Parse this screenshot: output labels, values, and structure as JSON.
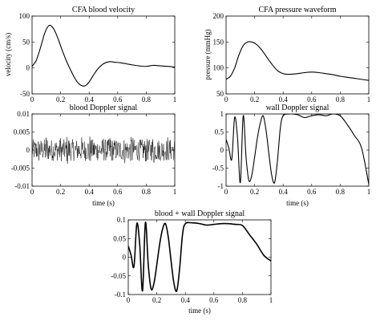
{
  "chart_data": [
    {
      "type": "line",
      "title": "CFA blood velocity",
      "xlabel": "",
      "ylabel": "velocity (cm/s)",
      "xlim": [
        0,
        1
      ],
      "ylim": [
        -50,
        100
      ],
      "xticks": [
        "0",
        "0.2",
        "0.4",
        "0.6",
        "0.8",
        "1"
      ],
      "yticks": [
        "-50",
        "0",
        "50",
        "100"
      ],
      "grid": false,
      "series": [
        {
          "x": [
            0,
            0.03,
            0.06,
            0.09,
            0.12,
            0.15,
            0.18,
            0.21,
            0.24,
            0.27,
            0.3,
            0.33,
            0.36,
            0.38,
            0.4,
            0.43,
            0.46,
            0.5,
            0.54,
            0.58,
            0.62,
            0.66,
            0.7,
            0.75,
            0.8,
            0.85,
            0.9,
            0.95,
            1.0
          ],
          "values": [
            3,
            15,
            40,
            68,
            82,
            76,
            58,
            35,
            14,
            -4,
            -20,
            -31,
            -35,
            -33,
            -27,
            -14,
            -2,
            8,
            12,
            11,
            10,
            8,
            6,
            4,
            3,
            5,
            4,
            3,
            2
          ]
        }
      ]
    },
    {
      "type": "line",
      "title": "CFA pressure waveform",
      "xlabel": "",
      "ylabel": "pressure (mmHg)",
      "xlim": [
        0,
        1
      ],
      "ylim": [
        50,
        200
      ],
      "xticks": [
        "0",
        "0.2",
        "0.4",
        "0.6",
        "0.8",
        "1"
      ],
      "yticks": [
        "50",
        "100",
        "150",
        "200"
      ],
      "grid": false,
      "series": [
        {
          "x": [
            0,
            0.03,
            0.06,
            0.09,
            0.12,
            0.15,
            0.18,
            0.21,
            0.24,
            0.27,
            0.3,
            0.33,
            0.36,
            0.39,
            0.42,
            0.46,
            0.5,
            0.55,
            0.6,
            0.65,
            0.7,
            0.75,
            0.8,
            0.85,
            0.9,
            0.95,
            1.0
          ],
          "values": [
            78,
            84,
            100,
            125,
            143,
            150,
            150,
            146,
            138,
            127,
            115,
            104,
            95,
            90,
            88,
            88,
            89,
            91,
            92,
            91,
            89,
            87,
            84,
            82,
            80,
            78,
            76
          ]
        }
      ]
    },
    {
      "type": "line",
      "title": "blood Doppler signal",
      "xlabel": "time (s)",
      "ylabel": "",
      "xlim": [
        0,
        1
      ],
      "ylim": [
        -0.01,
        0.01
      ],
      "xticks": [
        "0",
        "0.2",
        "0.4",
        "0.6",
        "0.8",
        "1"
      ],
      "yticks": [
        "-0.01",
        "-0.005",
        "0",
        "0.005",
        "0.01"
      ],
      "grid": false,
      "series": [
        {
          "x": [
            0,
            0.05,
            0.1,
            0.15,
            0.2,
            0.25,
            0.3,
            0.35,
            0.4,
            0.45,
            0.5,
            0.55,
            0.6,
            0.65,
            0.7,
            0.75,
            0.8,
            0.85,
            0.9,
            0.95,
            1.0
          ],
          "values": [
            0.002,
            -0.004,
            0.005,
            -0.003,
            0.004,
            -0.005,
            0.003,
            -0.004,
            0.005,
            -0.002,
            0.004,
            -0.005,
            0.003,
            -0.004,
            0.005,
            -0.003,
            0.004,
            -0.005,
            0.003,
            -0.004,
            0.002
          ],
          "amplitude": 0.005
        }
      ]
    },
    {
      "type": "line",
      "title": "wall Doppler signal",
      "xlabel": "time (s)",
      "ylabel": "",
      "xlim": [
        0,
        1
      ],
      "ylim": [
        -1,
        1
      ],
      "xticks": [
        "0",
        "0.2",
        "0.4",
        "0.6",
        "0.8",
        "1"
      ],
      "yticks": [
        "-1",
        "-0.5",
        "0",
        "0.5",
        "1"
      ],
      "grid": false,
      "series": [
        {
          "x": [
            0,
            0.02,
            0.04,
            0.06,
            0.08,
            0.1,
            0.12,
            0.14,
            0.16,
            0.18,
            0.2,
            0.22,
            0.24,
            0.26,
            0.28,
            0.3,
            0.32,
            0.34,
            0.36,
            0.38,
            0.4,
            0.45,
            0.5,
            0.55,
            0.6,
            0.65,
            0.7,
            0.75,
            0.8,
            0.85,
            0.9,
            0.95,
            1.0
          ],
          "values": [
            0.3,
            0.05,
            -0.25,
            0.9,
            0.35,
            -0.9,
            0.95,
            -0.2,
            -0.85,
            -0.7,
            -0.2,
            0.35,
            0.75,
            0.95,
            0.55,
            -0.1,
            -0.7,
            -0.9,
            -0.3,
            0.6,
            0.95,
            1.0,
            0.98,
            0.9,
            0.95,
            0.98,
            0.95,
            1.0,
            0.95,
            0.7,
            0.4,
            0.05,
            -0.95
          ]
        }
      ]
    },
    {
      "type": "line",
      "title": "blood + wall Doppler signal",
      "xlabel": "time (s)",
      "ylabel": "",
      "xlim": [
        0,
        1
      ],
      "ylim": [
        -0.1,
        0.1
      ],
      "xticks": [
        "0",
        "0.2",
        "0.4",
        "0.6",
        "0.8",
        "1"
      ],
      "yticks": [
        "-0.1",
        "-0.05",
        "0",
        "0.05",
        "0.1"
      ],
      "grid": false,
      "series": [
        {
          "x": [
            0,
            0.02,
            0.04,
            0.06,
            0.08,
            0.1,
            0.12,
            0.14,
            0.16,
            0.18,
            0.2,
            0.22,
            0.24,
            0.26,
            0.28,
            0.3,
            0.32,
            0.34,
            0.36,
            0.38,
            0.4,
            0.45,
            0.5,
            0.55,
            0.6,
            0.65,
            0.7,
            0.75,
            0.8,
            0.85,
            0.9,
            0.95,
            1.0
          ],
          "values": [
            0.03,
            0.005,
            -0.025,
            0.09,
            0.035,
            -0.09,
            0.093,
            -0.02,
            -0.085,
            -0.07,
            -0.02,
            0.035,
            0.075,
            0.09,
            0.055,
            -0.01,
            -0.07,
            -0.09,
            -0.03,
            0.06,
            0.09,
            0.092,
            0.09,
            0.086,
            0.088,
            0.09,
            0.09,
            0.088,
            0.085,
            0.06,
            0.035,
            0.005,
            -0.01
          ]
        }
      ]
    }
  ]
}
